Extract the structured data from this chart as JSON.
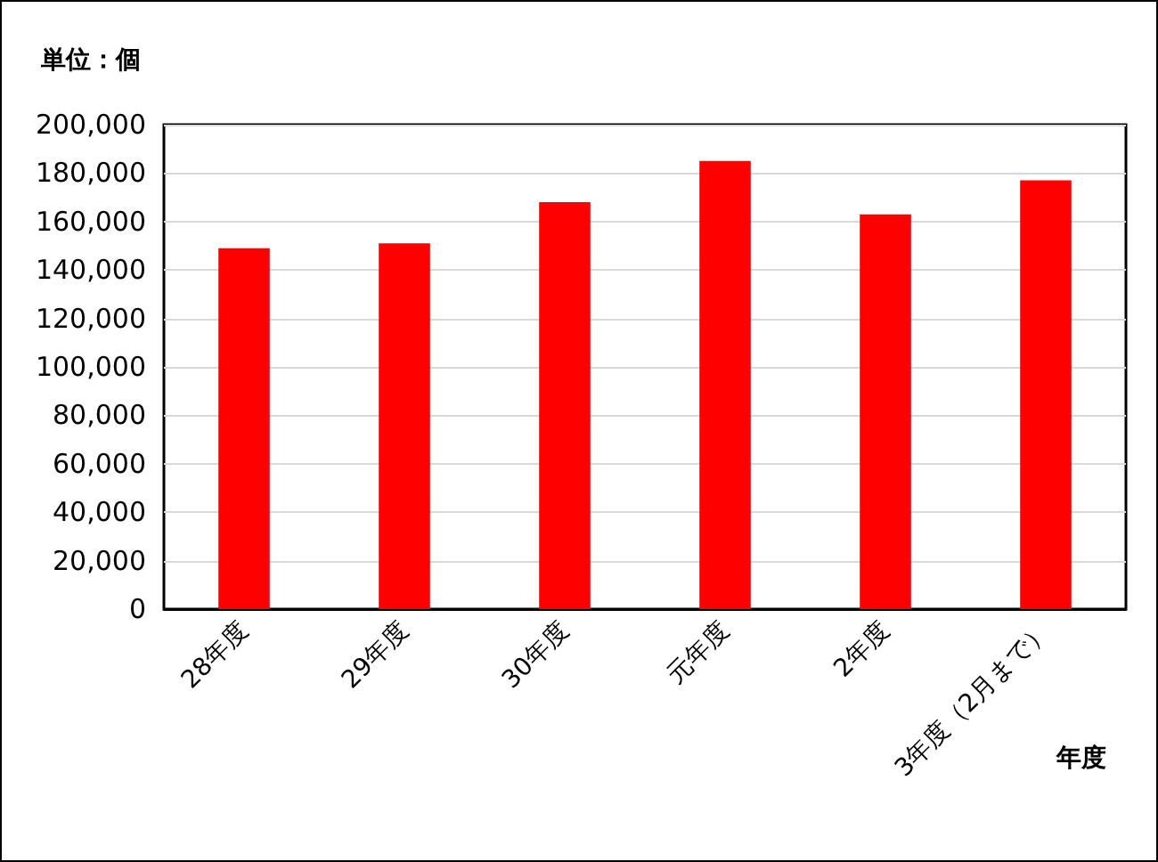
{
  "chart_data": {
    "type": "bar",
    "ylabel": "単位：個",
    "xlabel": "年度",
    "categories": [
      "28年度",
      "29年度",
      "30年度",
      "元年度",
      "2年度",
      "3年度（2月まで）"
    ],
    "values": [
      149000,
      151000,
      168000,
      185000,
      163000,
      177000
    ],
    "color": "#ff0000",
    "ylim": [
      0,
      200000
    ],
    "yticks": [
      {
        "value": 0,
        "label": "0"
      },
      {
        "value": 20000,
        "label": "20,000"
      },
      {
        "value": 40000,
        "label": "40,000"
      },
      {
        "value": 60000,
        "label": "60,000"
      },
      {
        "value": 80000,
        "label": "80,000"
      },
      {
        "value": 100000,
        "label": "100,000"
      },
      {
        "value": 120000,
        "label": "120,000"
      },
      {
        "value": 140000,
        "label": "140,000"
      },
      {
        "value": 160000,
        "label": "160,000"
      },
      {
        "value": 180000,
        "label": "180,000"
      },
      {
        "value": 200000,
        "label": "200,000"
      }
    ],
    "grid": "y"
  }
}
